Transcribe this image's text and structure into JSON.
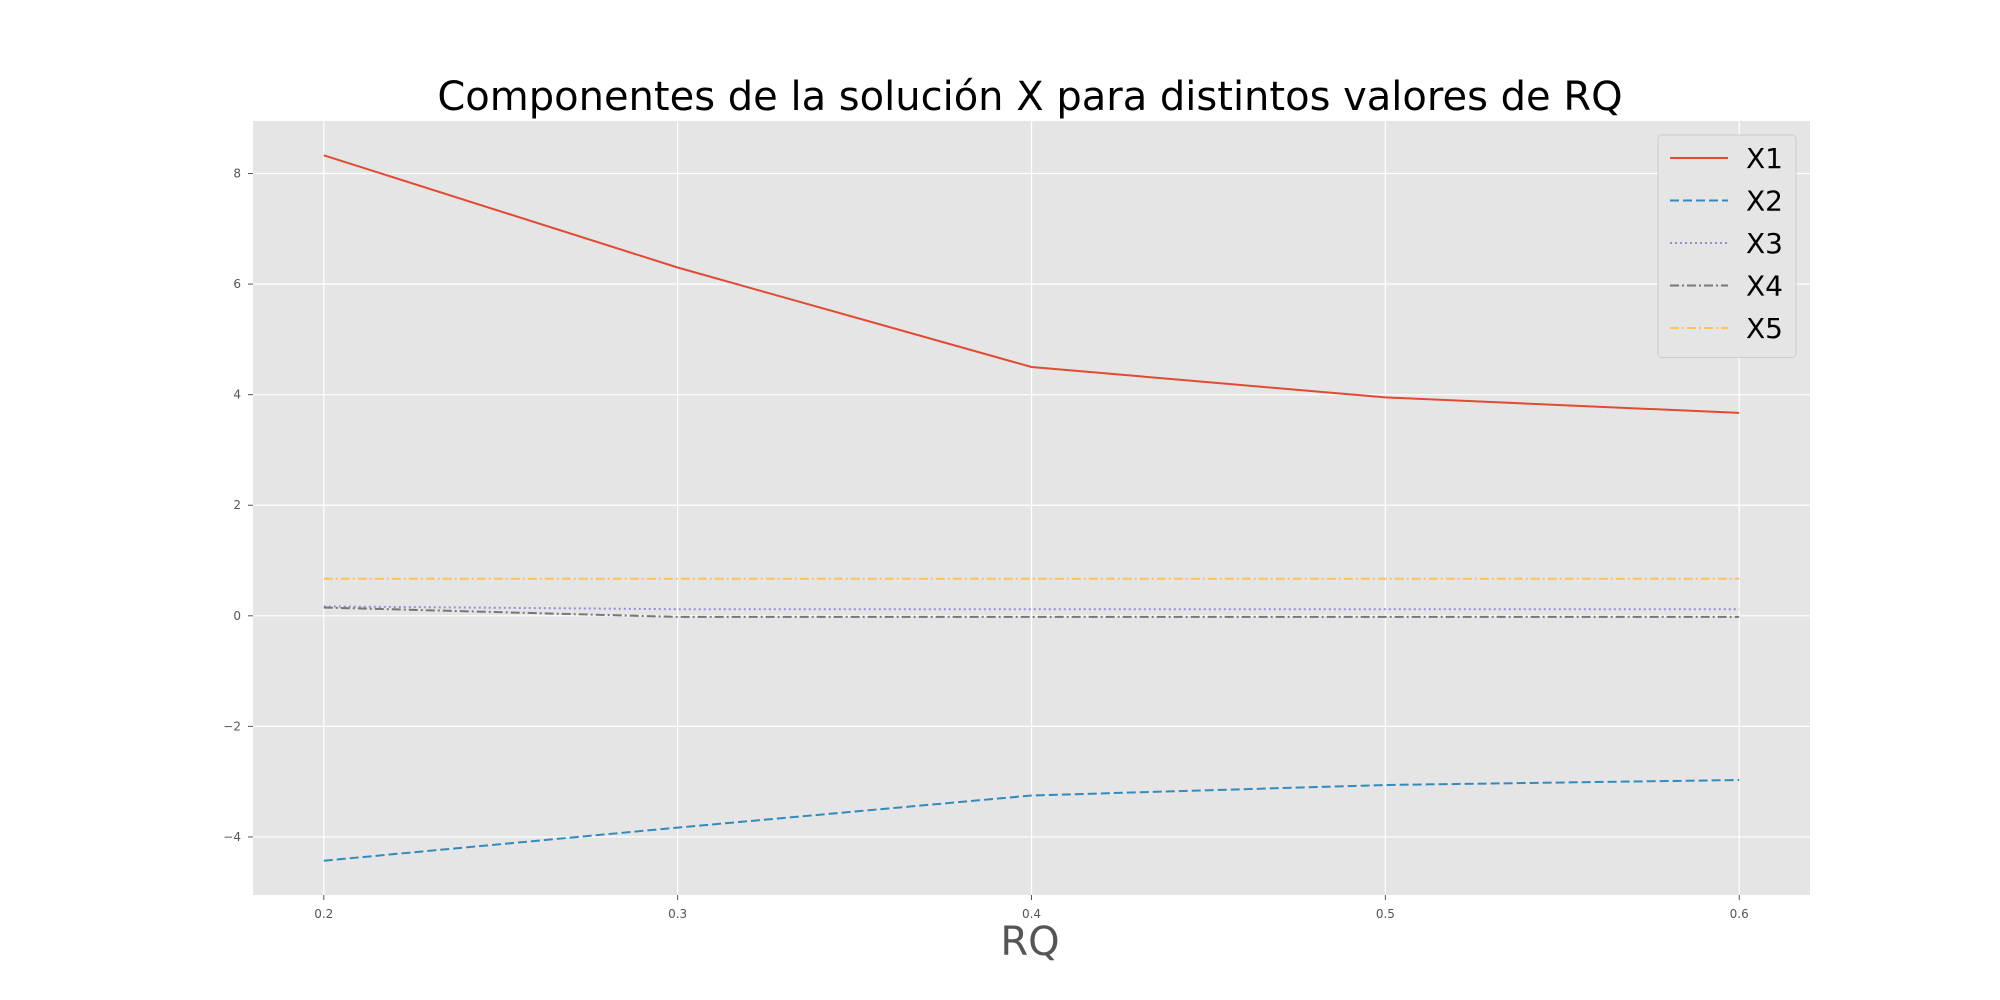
{
  "chart_data": {
    "type": "line",
    "title": "Componentes de la solución X para distintos valores de RQ",
    "xlabel": "RQ",
    "ylabel": "",
    "x": [
      0.2,
      0.3,
      0.4,
      0.5,
      0.6
    ],
    "xlim": [
      0.18,
      0.62
    ],
    "ylim": [
      -5.05,
      8.95
    ],
    "x_ticks": [
      0.2,
      0.3,
      0.4,
      0.5,
      0.6
    ],
    "x_tick_labels": [
      "0.2",
      "0.3",
      "0.4",
      "0.5",
      "0.6"
    ],
    "y_ticks": [
      -4,
      -2,
      0,
      2,
      4,
      6,
      8
    ],
    "y_tick_labels": [
      "−4",
      "−2",
      "0",
      "2",
      "4",
      "6",
      "8"
    ],
    "grid": true,
    "legend_position": "top-right",
    "background": "#e5e5e5",
    "series": [
      {
        "name": "X1",
        "values": [
          8.33,
          6.3,
          4.5,
          3.95,
          3.67
        ],
        "color": "#e24a33",
        "dash": "solid"
      },
      {
        "name": "X2",
        "values": [
          -4.43,
          -3.83,
          -3.25,
          -3.06,
          -2.97
        ],
        "color": "#348abd",
        "dash": "dashed"
      },
      {
        "name": "X3",
        "values": [
          0.17,
          0.12,
          0.12,
          0.12,
          0.12
        ],
        "color": "#988ed5",
        "dash": "dotted"
      },
      {
        "name": "X4",
        "values": [
          0.15,
          -0.02,
          -0.02,
          -0.02,
          -0.02
        ],
        "color": "#777777",
        "dash": "dashdot"
      },
      {
        "name": "X5",
        "values": [
          0.67,
          0.67,
          0.67,
          0.67,
          0.67
        ],
        "color": "#fbc15e",
        "dash": "dashdot"
      }
    ]
  }
}
